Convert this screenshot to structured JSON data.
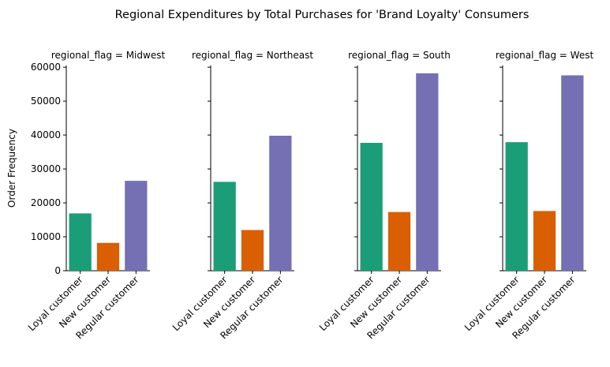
{
  "chart_data": {
    "type": "bar",
    "title": "Regional Expenditures by Total Purchases for 'Brand Loyalty' Consumers",
    "ylabel": "Order Frequency",
    "xlabel": "",
    "ylim": [
      0,
      60500
    ],
    "yticks": [
      0,
      10000,
      20000,
      30000,
      40000,
      50000,
      60000
    ],
    "grid": false,
    "categories": [
      "Loyal customer",
      "New customer",
      "Regular customer"
    ],
    "colors": [
      "#1b9e77",
      "#d95f02",
      "#7570b3"
    ],
    "panels": [
      {
        "title": "regional_flag = Midwest",
        "values": [
          16900,
          8200,
          26500
        ]
      },
      {
        "title": "regional_flag = Northeast",
        "values": [
          26200,
          12000,
          39800
        ]
      },
      {
        "title": "regional_flag = South",
        "values": [
          37700,
          17300,
          58200
        ]
      },
      {
        "title": "regional_flag = West",
        "values": [
          37900,
          17600,
          57600
        ]
      }
    ]
  }
}
